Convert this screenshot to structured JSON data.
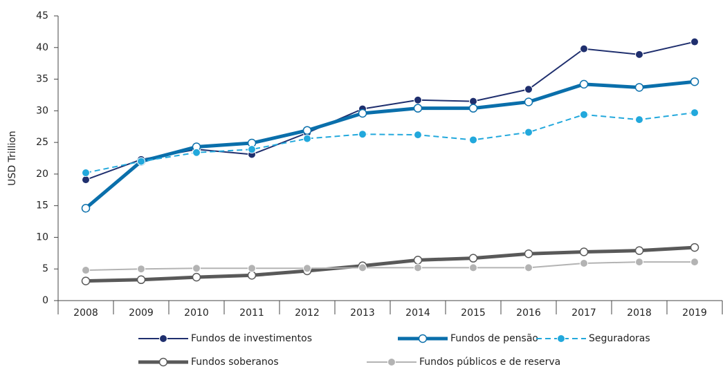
{
  "chart_data": {
    "type": "line",
    "y_label": "USD Trillion",
    "categories": [
      "2008",
      "2009",
      "2010",
      "2011",
      "2012",
      "2013",
      "2014",
      "2015",
      "2016",
      "2017",
      "2018",
      "2019"
    ],
    "ylim": [
      0,
      45
    ],
    "yticks": [
      0,
      5,
      10,
      15,
      20,
      25,
      30,
      35,
      40,
      45
    ],
    "series": [
      {
        "name": "Fundos de investimentos",
        "color": "#1f2f6e",
        "width": 2,
        "marker": "filled",
        "dashed": false,
        "values": [
          19.1,
          22.3,
          23.9,
          23.1,
          26.5,
          30.3,
          31.7,
          31.5,
          33.4,
          39.8,
          38.9,
          40.9
        ]
      },
      {
        "name": "Fundos de pensão",
        "color": "#0a6fab",
        "width": 5,
        "marker": "open",
        "dashed": false,
        "values": [
          14.6,
          22.0,
          24.3,
          24.9,
          26.9,
          29.6,
          30.4,
          30.4,
          31.4,
          34.2,
          33.7,
          34.6
        ]
      },
      {
        "name": "Seguradoras",
        "color": "#22a8dc",
        "width": 2,
        "marker": "filled",
        "dashed": true,
        "values": [
          20.2,
          22.0,
          23.4,
          23.9,
          25.6,
          26.3,
          26.2,
          25.4,
          26.6,
          29.4,
          28.6,
          29.7
        ]
      },
      {
        "name": "Fundos soberanos",
        "color": "#595959",
        "width": 5,
        "marker": "open",
        "dashed": false,
        "values": [
          3.1,
          3.3,
          3.7,
          4.0,
          4.7,
          5.5,
          6.4,
          6.7,
          7.4,
          7.7,
          7.9,
          8.4
        ]
      },
      {
        "name": "Fundos públicos e de reserva",
        "color": "#b3b3b3",
        "width": 2,
        "marker": "filled",
        "dashed": false,
        "values": [
          4.8,
          5.0,
          5.1,
          5.1,
          5.1,
          5.2,
          5.2,
          5.2,
          5.2,
          5.9,
          6.1,
          6.1
        ]
      }
    ]
  }
}
